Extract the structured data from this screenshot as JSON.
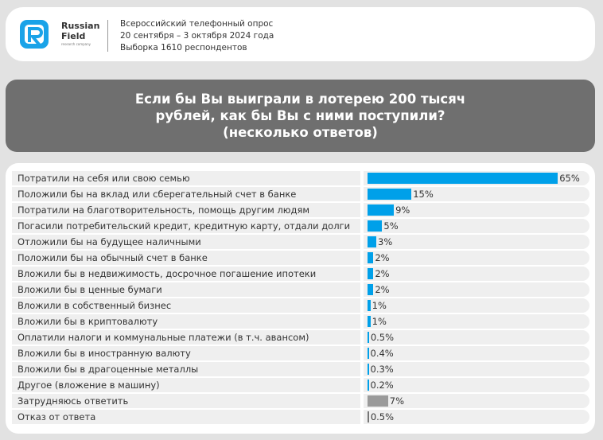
{
  "header": {
    "brand_name_1": "Russian",
    "brand_name_2": "Field",
    "brand_tagline": "research company",
    "info_lines": [
      "Всероссийский телефонный опрос",
      "20 сентября – 3 октября 2024 года",
      "Выборка 1610 респондентов"
    ]
  },
  "colors": {
    "accent": "#00a0e9",
    "other": "#9a9a9a",
    "title_bg": "#6f6f6f"
  },
  "chart_data": {
    "type": "bar",
    "orientation": "horizontal",
    "title": "Если бы Вы выиграли в лотерею 200 тысяч рублей, как бы Вы с ними поступили? (несколько ответов)",
    "categories": [
      "Потратили на себя или свою семью",
      "Положили бы на вклад или сберегательный счет в банке",
      "Потратили на благотворительность, помощь другим людям",
      "Погасили потребительский кредит, кредитную карту, отдали долги",
      "Отложили бы на будущее наличными",
      "Положили бы на обычный счет в банке",
      "Вложили бы в недвижимость, досрочное погашение ипотеки",
      "Вложили бы в ценные бумаги",
      "Вложили в собственный бизнес",
      "Вложили бы в криптовалюту",
      "Оплатили налоги и коммунальные платежи (в т.ч. авансом)",
      "Вложили бы в иностранную валюту",
      "Вложили бы в драгоценные металлы",
      "Другое (вложение в машину)",
      "Затрудняюсь ответить",
      "Отказ от ответа"
    ],
    "values": [
      65,
      15,
      9,
      5,
      3,
      2,
      2,
      2,
      1,
      1,
      0.5,
      0.4,
      0.3,
      0.2,
      7,
      0.5
    ],
    "labels": [
      "65%",
      "15%",
      "9%",
      "5%",
      "3%",
      "2%",
      "2%",
      "2%",
      "1%",
      "1%",
      "0.5%",
      "0.4%",
      "0.3%",
      "0.2%",
      "7%",
      "0.5%"
    ],
    "bar_colors": [
      "#00a0e9",
      "#00a0e9",
      "#00a0e9",
      "#00a0e9",
      "#00a0e9",
      "#00a0e9",
      "#00a0e9",
      "#00a0e9",
      "#00a0e9",
      "#00a0e9",
      "#00a0e9",
      "#00a0e9",
      "#00a0e9",
      "#00a0e9",
      "#9a9a9a",
      "#777777"
    ],
    "unit": "%"
  }
}
